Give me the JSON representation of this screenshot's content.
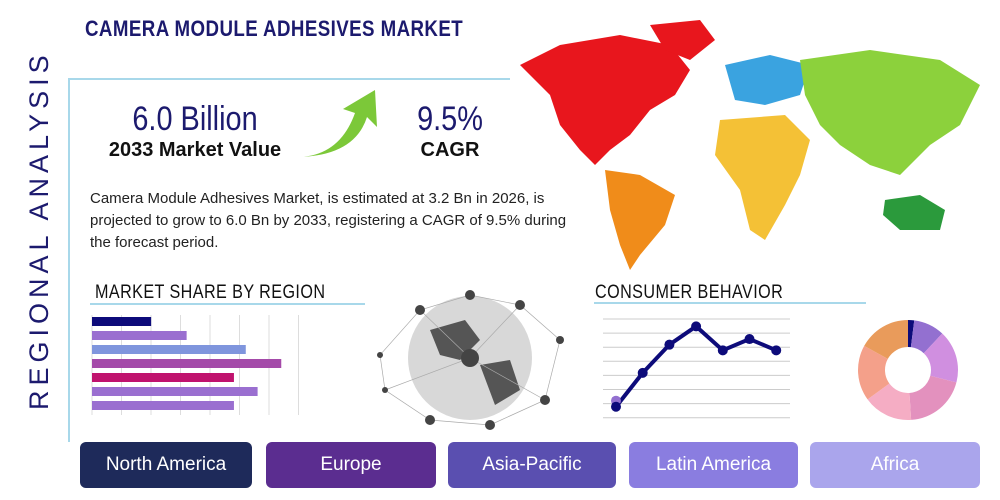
{
  "title": "CAMERA MODULE ADHESIVES MARKET",
  "side_label": "REGIONAL ANALYSIS",
  "market_value": {
    "value": "6.0 Billion",
    "label": "2033 Market Value"
  },
  "cagr": {
    "value": "9.5%",
    "label": "CAGR"
  },
  "description": "Camera Module Adhesives Market, is estimated at 3.2 Bn in 2026, is projected to grow to 6.0 Bn by 2033, registering a CAGR of 9.5% during the forecast period.",
  "market_share_title": "MARKET SHARE BY REGION",
  "consumer_behavior_title": "CONSUMER BEHAVIOR",
  "regions": [
    "North America",
    "Europe",
    "Asia-Pacific",
    "Latin America",
    "Africa"
  ],
  "colors": {
    "navy": "#1c1a6e",
    "accent_line": "#a8d8ea",
    "button_colors": [
      "#1e2a5a",
      "#5b2d90",
      "#5a4fb0",
      "#8a7de0",
      "#aaa5ec"
    ]
  },
  "chart_data": [
    {
      "type": "bar",
      "orientation": "horizontal",
      "values": [
        2,
        3.2,
        5.2,
        6.4,
        4.8,
        5.6,
        4.8
      ],
      "colors": [
        "#0d0b7a",
        "#9a6fd0",
        "#7f95dd",
        "#a44aa9",
        "#c0136e",
        "#9a6fd0",
        "#9a6fd0"
      ],
      "xlim": [
        0,
        7
      ],
      "grid": true
    },
    {
      "type": "line",
      "x": [
        1,
        2,
        3,
        4,
        5,
        6,
        7
      ],
      "values": [
        0.8,
        3.2,
        5.2,
        6.5,
        4.8,
        5.6,
        4.8
      ],
      "ylim": [
        0,
        7
      ],
      "grid": true,
      "color": "#0d0b7a"
    },
    {
      "type": "pie",
      "donut": true,
      "values": [
        2,
        10,
        17,
        20,
        16,
        18,
        17
      ],
      "colors": [
        "#0d0b7a",
        "#9370d0",
        "#d08fe0",
        "#e391be",
        "#f5adc4",
        "#f4a08a",
        "#e99b5b"
      ]
    }
  ]
}
